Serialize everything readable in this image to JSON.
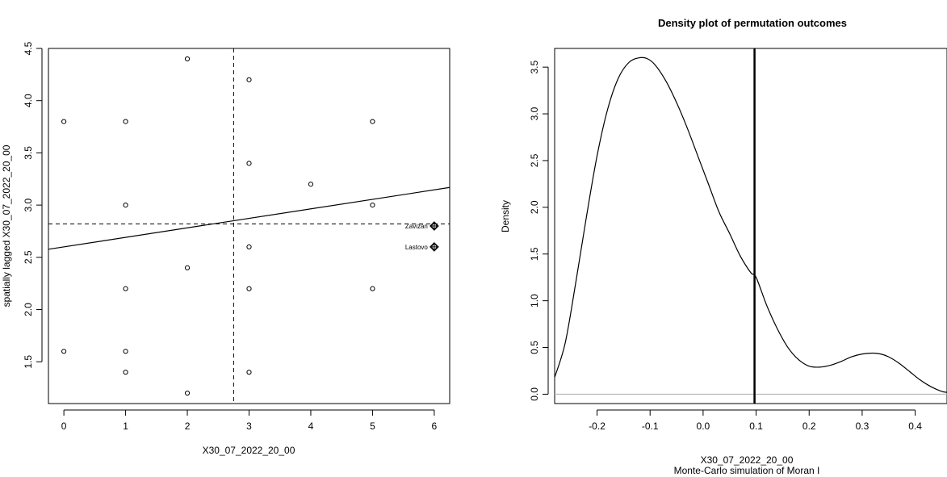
{
  "chart_data": [
    {
      "type": "scatter",
      "title": "",
      "xlabel": "X30_07_2022_20_00",
      "ylabel": "spatially lagged X30_07_2022_20_00",
      "xlim": [
        -0.25,
        6.25
      ],
      "ylim": [
        1.1,
        4.5
      ],
      "xticks": [
        "0",
        "1",
        "2",
        "3",
        "4",
        "5",
        "6"
      ],
      "yticks": [
        "1.5",
        "2.0",
        "2.5",
        "3.0",
        "3.5",
        "4.0",
        "4.5"
      ],
      "points": [
        {
          "x": 0,
          "y": 3.8
        },
        {
          "x": 0,
          "y": 1.6
        },
        {
          "x": 1,
          "y": 3.8
        },
        {
          "x": 1,
          "y": 3.0
        },
        {
          "x": 1,
          "y": 2.2
        },
        {
          "x": 1,
          "y": 1.6
        },
        {
          "x": 1,
          "y": 1.4
        },
        {
          "x": 2,
          "y": 4.4
        },
        {
          "x": 2,
          "y": 2.4
        },
        {
          "x": 2,
          "y": 1.2
        },
        {
          "x": 3,
          "y": 4.2
        },
        {
          "x": 3,
          "y": 3.4
        },
        {
          "x": 3,
          "y": 2.6
        },
        {
          "x": 3,
          "y": 2.2
        },
        {
          "x": 3,
          "y": 1.4
        },
        {
          "x": 4,
          "y": 3.2
        },
        {
          "x": 5,
          "y": 3.8
        },
        {
          "x": 5,
          "y": 3.0
        },
        {
          "x": 5,
          "y": 2.2
        }
      ],
      "influential_points": [
        {
          "x": 6,
          "y": 2.8,
          "label": "Zavizan"
        },
        {
          "x": 6,
          "y": 2.6,
          "label": "Lastovo"
        }
      ],
      "mean_x": 2.75,
      "mean_y": 2.82,
      "regression_line": {
        "intercept": 2.6,
        "slope": 0.091
      }
    },
    {
      "type": "line",
      "title": "Density plot of permutation outcomes",
      "xlabel": "X30_07_2022_20_00",
      "subtitle": "Monte-Carlo simulation of Moran I",
      "ylabel": "Density",
      "xlim": [
        -0.28,
        0.46
      ],
      "ylim": [
        -0.1,
        3.7
      ],
      "xticks": [
        "-0.2",
        "-0.1",
        "0.0",
        "0.1",
        "0.2",
        "0.3",
        "0.4"
      ],
      "yticks": [
        "0.0",
        "0.5",
        "1.0",
        "1.5",
        "2.0",
        "2.5",
        "3.0",
        "3.5"
      ],
      "series": [
        {
          "x": [
            -0.28,
            -0.26,
            -0.24,
            -0.22,
            -0.2,
            -0.18,
            -0.16,
            -0.14,
            -0.12,
            -0.105,
            -0.09,
            -0.07,
            -0.05,
            -0.03,
            -0.01,
            0.01,
            0.03,
            0.05,
            0.07,
            0.09,
            0.1,
            0.12,
            0.14,
            0.16,
            0.18,
            0.2,
            0.22,
            0.24,
            0.26,
            0.28,
            0.3,
            0.32,
            0.335,
            0.35,
            0.37,
            0.39,
            0.41,
            0.43,
            0.45,
            0.46
          ],
          "y": [
            0.18,
            0.55,
            1.2,
            1.9,
            2.55,
            3.05,
            3.38,
            3.55,
            3.6,
            3.59,
            3.52,
            3.35,
            3.12,
            2.85,
            2.55,
            2.25,
            1.95,
            1.72,
            1.48,
            1.3,
            1.25,
            0.95,
            0.7,
            0.5,
            0.37,
            0.3,
            0.29,
            0.31,
            0.35,
            0.4,
            0.43,
            0.44,
            0.43,
            0.4,
            0.33,
            0.24,
            0.15,
            0.08,
            0.03,
            0.02
          ]
        }
      ],
      "observed_value": 0.097,
      "reference_line_y": 0
    }
  ]
}
